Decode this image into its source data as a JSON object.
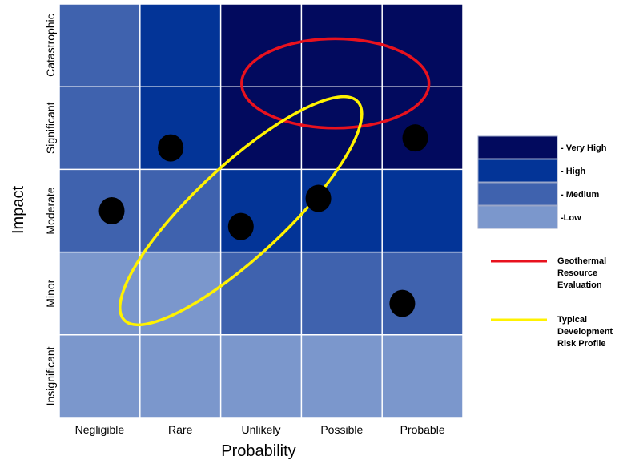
{
  "chart_data": {
    "type": "heatmap",
    "xlabel": "Probability",
    "ylabel": "Impact",
    "x_categories": [
      "Negligible",
      "Rare",
      "Unlikely",
      "Possible",
      "Probable"
    ],
    "y_categories": [
      "Insignificant",
      "Minor",
      "Moderate",
      "Significant",
      "Catastrophic"
    ],
    "levels": [
      {
        "key": "very_high",
        "label": "- Very High",
        "color": "#020a5e"
      },
      {
        "key": "high",
        "label": "- High",
        "color": "#033497"
      },
      {
        "key": "medium",
        "label": "- Medium",
        "color": "#3f62ae"
      },
      {
        "key": "low",
        "label": "-Low",
        "color": "#7b97cc"
      }
    ],
    "grid": [
      [
        "low",
        "low",
        "low",
        "low",
        "low"
      ],
      [
        "low",
        "low",
        "medium",
        "medium",
        "medium"
      ],
      [
        "medium",
        "medium",
        "high",
        "high",
        "high"
      ],
      [
        "medium",
        "high",
        "very_high",
        "very_high",
        "very_high"
      ],
      [
        "medium",
        "high",
        "very_high",
        "very_high",
        "very_high"
      ]
    ],
    "points": [
      {
        "x": 0.65,
        "y": 2.5
      },
      {
        "x": 1.38,
        "y": 3.26
      },
      {
        "x": 2.25,
        "y": 2.31
      },
      {
        "x": 3.21,
        "y": 2.65
      },
      {
        "x": 4.41,
        "y": 3.38
      },
      {
        "x": 4.25,
        "y": 1.38
      }
    ],
    "regions": [
      {
        "name": "Geothermal Resource Evaluation",
        "color": "#e8121e",
        "cx": 3.42,
        "cy": 4.04,
        "rx": 1.16,
        "ry": 0.54,
        "angle": 0
      },
      {
        "name": "Typical Development Risk Profile",
        "color": "#fff200",
        "cx": 2.25,
        "cy": 2.5,
        "rx": 1.98,
        "ry": 0.55,
        "angle": -43
      }
    ],
    "line_legend": [
      {
        "lines": [
          "Geothermal",
          "Resource",
          "Evaluation"
        ],
        "color": "#e8121e"
      },
      {
        "lines": [
          "Typical",
          "Development",
          "Risk Profile"
        ],
        "color": "#fff200"
      }
    ]
  }
}
